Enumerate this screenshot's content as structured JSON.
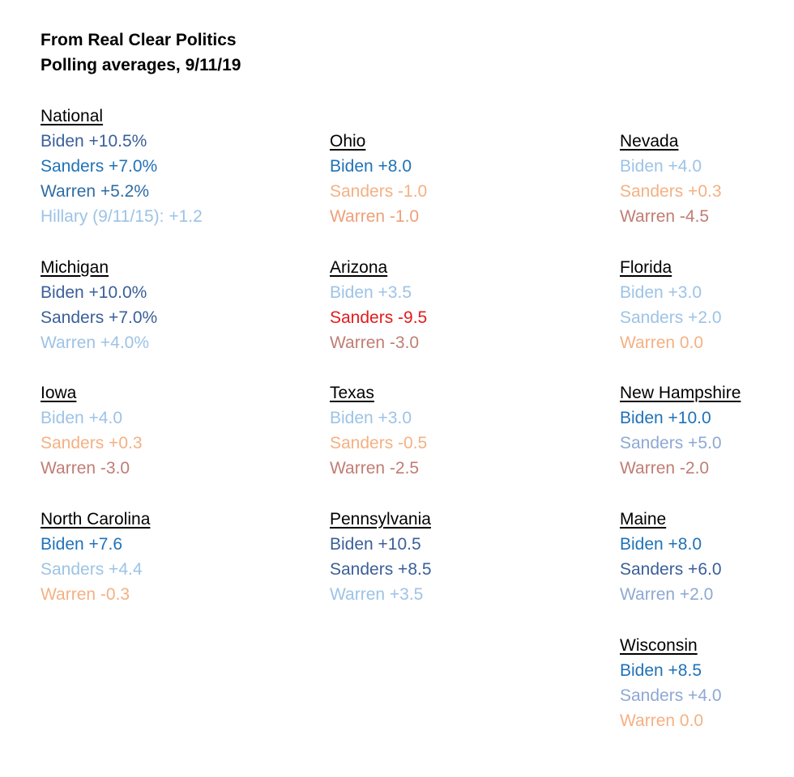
{
  "header": {
    "line1": "From Real Clear Politics",
    "line2": "Polling averages, 9/11/19"
  },
  "colors": {
    "dark_blue": "#3b5f99",
    "blue": "#1f72b8",
    "mid_blue": "#8ea8d4",
    "light_blue": "#9dc3e6",
    "light_orange": "#f4b183",
    "mid_orange": "#eea07a",
    "brown": "#c07d74",
    "red": "#e31a1c"
  },
  "states": {
    "national": {
      "name": "National",
      "lines": [
        {
          "text": "Biden +10.5%",
          "color": "#3b5f99"
        },
        {
          "text": "Sanders +7.0%",
          "color": "#1f72b8"
        },
        {
          "text": "Warren +5.2%",
          "color": "#2e6ca4"
        },
        {
          "text": "Hillary (9/11/15): +1.2",
          "color": "#9dc3e6"
        }
      ]
    },
    "michigan": {
      "name": "Michigan",
      "lines": [
        {
          "text": "Biden +10.0%",
          "color": "#3b5f99"
        },
        {
          "text": "Sanders +7.0%",
          "color": "#3b5f99"
        },
        {
          "text": "Warren +4.0%",
          "color": "#9dc3e6"
        }
      ]
    },
    "iowa": {
      "name": "Iowa",
      "lines": [
        {
          "text": "Biden +4.0",
          "color": "#9dc3e6"
        },
        {
          "text": "Sanders +0.3",
          "color": "#f4b183"
        },
        {
          "text": "Warren -3.0",
          "color": "#c07d74"
        }
      ]
    },
    "north_carolina": {
      "name": "North Carolina",
      "lines": [
        {
          "text": "Biden +7.6",
          "color": "#1f72b8"
        },
        {
          "text": "Sanders +4.4",
          "color": "#9dc3e6"
        },
        {
          "text": "Warren -0.3",
          "color": "#f4b183"
        }
      ]
    },
    "ohio": {
      "name": "Ohio",
      "lines": [
        {
          "text": "Biden +8.0",
          "color": "#1f72b8"
        },
        {
          "text": "Sanders -1.0",
          "color": "#f4b183"
        },
        {
          "text": "Warren -1.0",
          "color": "#eea07a"
        }
      ]
    },
    "arizona": {
      "name": "Arizona",
      "lines": [
        {
          "text": "Biden +3.5",
          "color": "#9dc3e6"
        },
        {
          "text": "Sanders -9.5",
          "color": "#e31a1c"
        },
        {
          "text": "Warren -3.0",
          "color": "#c07d74"
        }
      ]
    },
    "texas": {
      "name": "Texas",
      "lines": [
        {
          "text": "Biden +3.0",
          "color": "#9dc3e6"
        },
        {
          "text": "Sanders -0.5",
          "color": "#f4b183"
        },
        {
          "text": "Warren -2.5",
          "color": "#c07d74"
        }
      ]
    },
    "pennsylvania": {
      "name": "Pennsylvania",
      "lines": [
        {
          "text": "Biden +10.5",
          "color": "#3b5f99"
        },
        {
          "text": "Sanders +8.5",
          "color": "#3b5f99"
        },
        {
          "text": "Warren +3.5",
          "color": "#9dc3e6"
        }
      ]
    },
    "nevada": {
      "name": "Nevada",
      "lines": [
        {
          "text": "Biden +4.0",
          "color": "#9dc3e6"
        },
        {
          "text": "Sanders +0.3",
          "color": "#f4b183"
        },
        {
          "text": "Warren -4.5",
          "color": "#c07d74"
        }
      ]
    },
    "florida": {
      "name": "Florida",
      "lines": [
        {
          "text": "Biden +3.0",
          "color": "#9dc3e6"
        },
        {
          "text": "Sanders +2.0",
          "color": "#9dc3e6"
        },
        {
          "text": "Warren 0.0",
          "color": "#f4b183"
        }
      ]
    },
    "new_hampshire": {
      "name": "New Hampshire",
      "lines": [
        {
          "text": "Biden +10.0",
          "color": "#1f72b8"
        },
        {
          "text": "Sanders +5.0",
          "color": "#8ea8d4"
        },
        {
          "text": "Warren -2.0",
          "color": "#c07d74"
        }
      ]
    },
    "maine": {
      "name": "Maine",
      "lines": [
        {
          "text": "Biden +8.0",
          "color": "#1f72b8"
        },
        {
          "text": "Sanders +6.0",
          "color": "#3b5f99"
        },
        {
          "text": "Warren +2.0",
          "color": "#8ea8d4"
        }
      ]
    },
    "wisconsin": {
      "name": "Wisconsin",
      "lines": [
        {
          "text": "Biden +8.5",
          "color": "#1f72b8"
        },
        {
          "text": "Sanders +4.0",
          "color": "#8ea8d4"
        },
        {
          "text": "Warren 0.0",
          "color": "#f4b183"
        }
      ]
    }
  }
}
